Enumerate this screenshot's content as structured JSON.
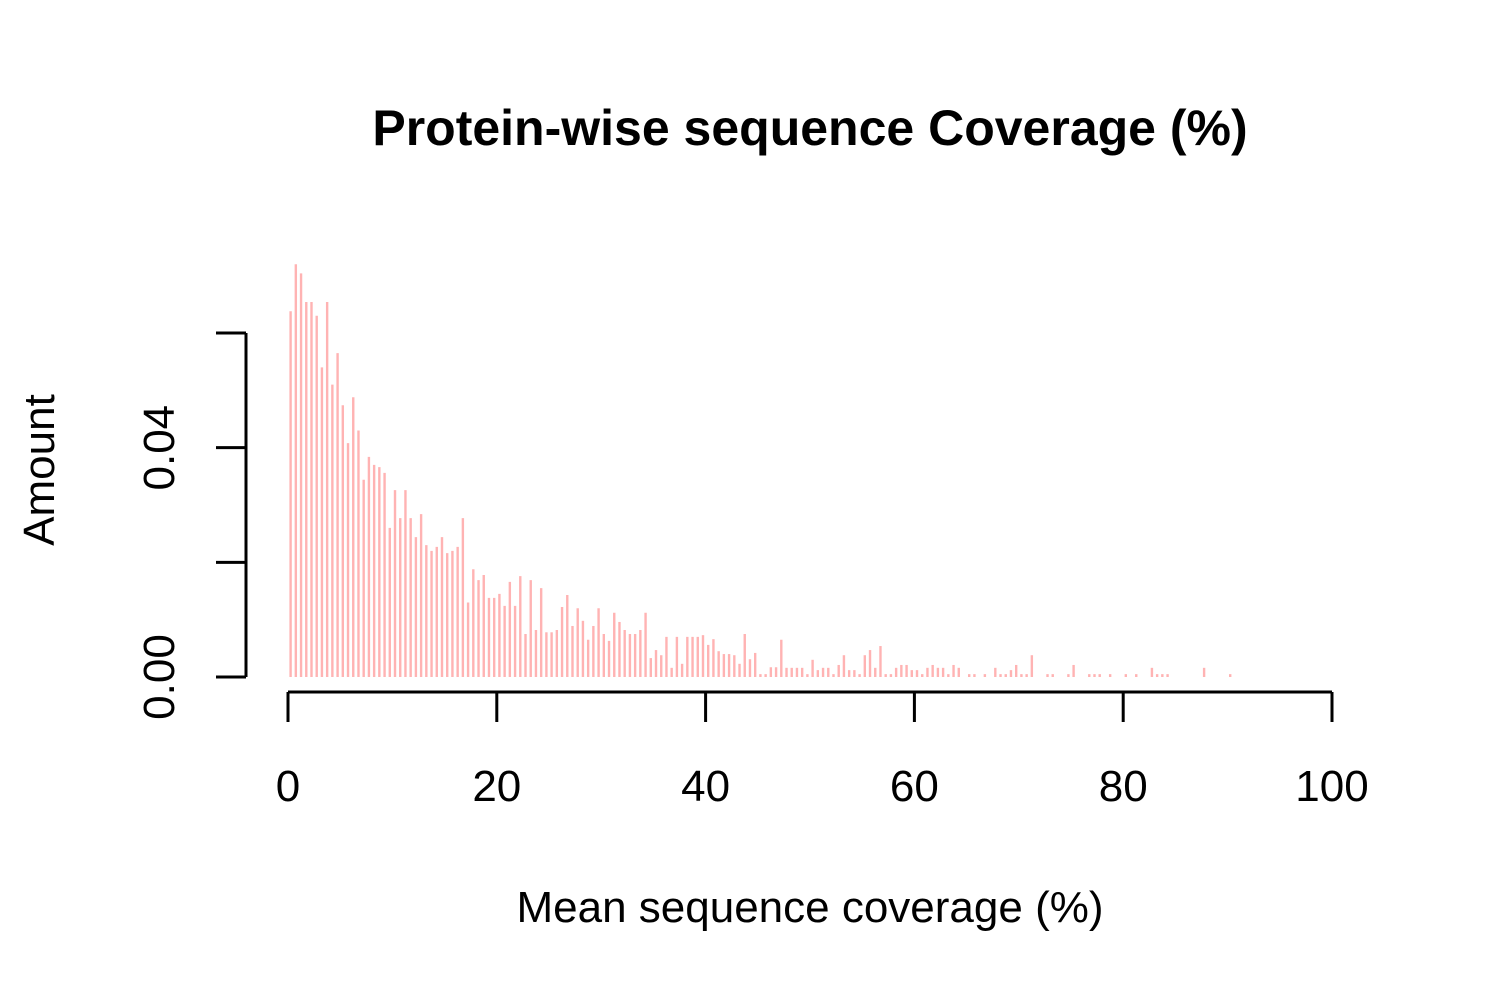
{
  "chart_data": {
    "type": "spike",
    "title": "Protein-wise sequence Coverage (%)",
    "x_label": "Mean sequence coverage (%)",
    "y_label": "Amount",
    "color": "#ffb3b3",
    "xlim": [
      0,
      100
    ],
    "xticks": [
      0,
      20,
      40,
      60,
      80,
      100
    ],
    "ylim": [
      0,
      0.06
    ],
    "yticks": [
      {
        "value": 0,
        "label": "0.00"
      },
      {
        "value": 0.02,
        "label": null
      },
      {
        "value": 0.04,
        "label": "0.04"
      },
      {
        "value": 0.06,
        "label": null
      }
    ],
    "x": [
      0.25,
      0.75,
      1.25,
      1.75,
      2.25,
      2.75,
      3.25,
      3.75,
      4.25,
      4.75,
      5.25,
      5.75,
      6.25,
      6.75,
      7.25,
      7.75,
      8.25,
      8.75,
      9.25,
      9.75,
      10.25,
      10.75,
      11.25,
      11.75,
      12.25,
      12.75,
      13.25,
      13.75,
      14.25,
      14.75,
      15.25,
      15.75,
      16.25,
      16.75,
      17.25,
      17.75,
      18.25,
      18.75,
      19.25,
      19.75,
      20.25,
      20.75,
      21.25,
      21.75,
      22.25,
      22.75,
      23.25,
      23.75,
      24.25,
      24.75,
      25.25,
      25.75,
      26.25,
      26.75,
      27.25,
      27.75,
      28.25,
      28.75,
      29.25,
      29.75,
      30.25,
      30.75,
      31.25,
      31.75,
      32.25,
      32.75,
      33.25,
      33.75,
      34.25,
      34.75,
      35.25,
      35.75,
      36.25,
      36.75,
      37.25,
      37.75,
      38.25,
      38.75,
      39.25,
      39.75,
      40.25,
      40.75,
      41.25,
      41.75,
      42.25,
      42.75,
      43.25,
      43.75,
      44.25,
      44.75,
      45.25,
      45.75,
      46.25,
      46.75,
      47.25,
      47.75,
      48.25,
      48.75,
      49.25,
      49.75,
      50.25,
      50.75,
      51.25,
      51.75,
      52.25,
      52.75,
      53.25,
      53.75,
      54.25,
      54.75,
      55.25,
      55.75,
      56.25,
      56.75,
      57.25,
      57.75,
      58.25,
      58.75,
      59.25,
      59.75,
      60.25,
      60.75,
      61.25,
      61.75,
      62.25,
      62.75,
      63.25,
      63.75,
      64.25,
      65.25,
      65.75,
      66.75,
      67.75,
      68.25,
      68.75,
      69.25,
      69.75,
      70.25,
      70.75,
      71.25,
      72.75,
      73.25,
      74.75,
      75.25,
      76.75,
      77.25,
      77.75,
      78.75,
      80.25,
      81.25,
      82.75,
      83.25,
      83.75,
      84.25,
      87.75,
      90.25
    ],
    "values": [
      0.0638,
      0.072,
      0.0704,
      0.0654,
      0.0654,
      0.063,
      0.054,
      0.0654,
      0.051,
      0.0565,
      0.0474,
      0.0408,
      0.0488,
      0.043,
      0.0344,
      0.0384,
      0.037,
      0.0366,
      0.0356,
      0.026,
      0.0326,
      0.0277,
      0.0326,
      0.0277,
      0.0244,
      0.0284,
      0.023,
      0.022,
      0.0227,
      0.0244,
      0.0216,
      0.022,
      0.0227,
      0.0277,
      0.013,
      0.0188,
      0.0169,
      0.0178,
      0.0138,
      0.0138,
      0.0145,
      0.0124,
      0.0166,
      0.0124,
      0.0176,
      0.0075,
      0.0169,
      0.0082,
      0.0155,
      0.0078,
      0.0078,
      0.0082,
      0.0122,
      0.0143,
      0.0089,
      0.012,
      0.0098,
      0.0065,
      0.0089,
      0.012,
      0.0075,
      0.0063,
      0.0112,
      0.0096,
      0.0082,
      0.0075,
      0.0075,
      0.0082,
      0.0112,
      0.0033,
      0.0047,
      0.0038,
      0.007,
      0.0016,
      0.007,
      0.0023,
      0.007,
      0.007,
      0.007,
      0.0073,
      0.0056,
      0.0066,
      0.0045,
      0.004,
      0.004,
      0.0038,
      0.0023,
      0.0075,
      0.0031,
      0.0042,
      0.0005,
      0.0005,
      0.0017,
      0.0017,
      0.0065,
      0.0016,
      0.0016,
      0.0016,
      0.0016,
      0.0005,
      0.003,
      0.0012,
      0.0016,
      0.0016,
      0.0005,
      0.0021,
      0.0038,
      0.0012,
      0.0012,
      0.0005,
      0.0038,
      0.0047,
      0.0016,
      0.0054,
      0.0005,
      0.0005,
      0.0016,
      0.0021,
      0.0021,
      0.0012,
      0.0012,
      0.0005,
      0.0016,
      0.0021,
      0.0016,
      0.0016,
      0.0005,
      0.0021,
      0.0016,
      0.0005,
      0.0005,
      0.0005,
      0.0016,
      0.0005,
      0.0005,
      0.0012,
      0.0021,
      0.0005,
      0.0005,
      0.0038,
      0.0005,
      0.0005,
      0.0005,
      0.0021,
      0.0005,
      0.0005,
      0.0005,
      0.0005,
      0.0005,
      0.0005,
      0.0016,
      0.0005,
      0.0005,
      0.0005,
      0.0016,
      0.0005
    ]
  }
}
